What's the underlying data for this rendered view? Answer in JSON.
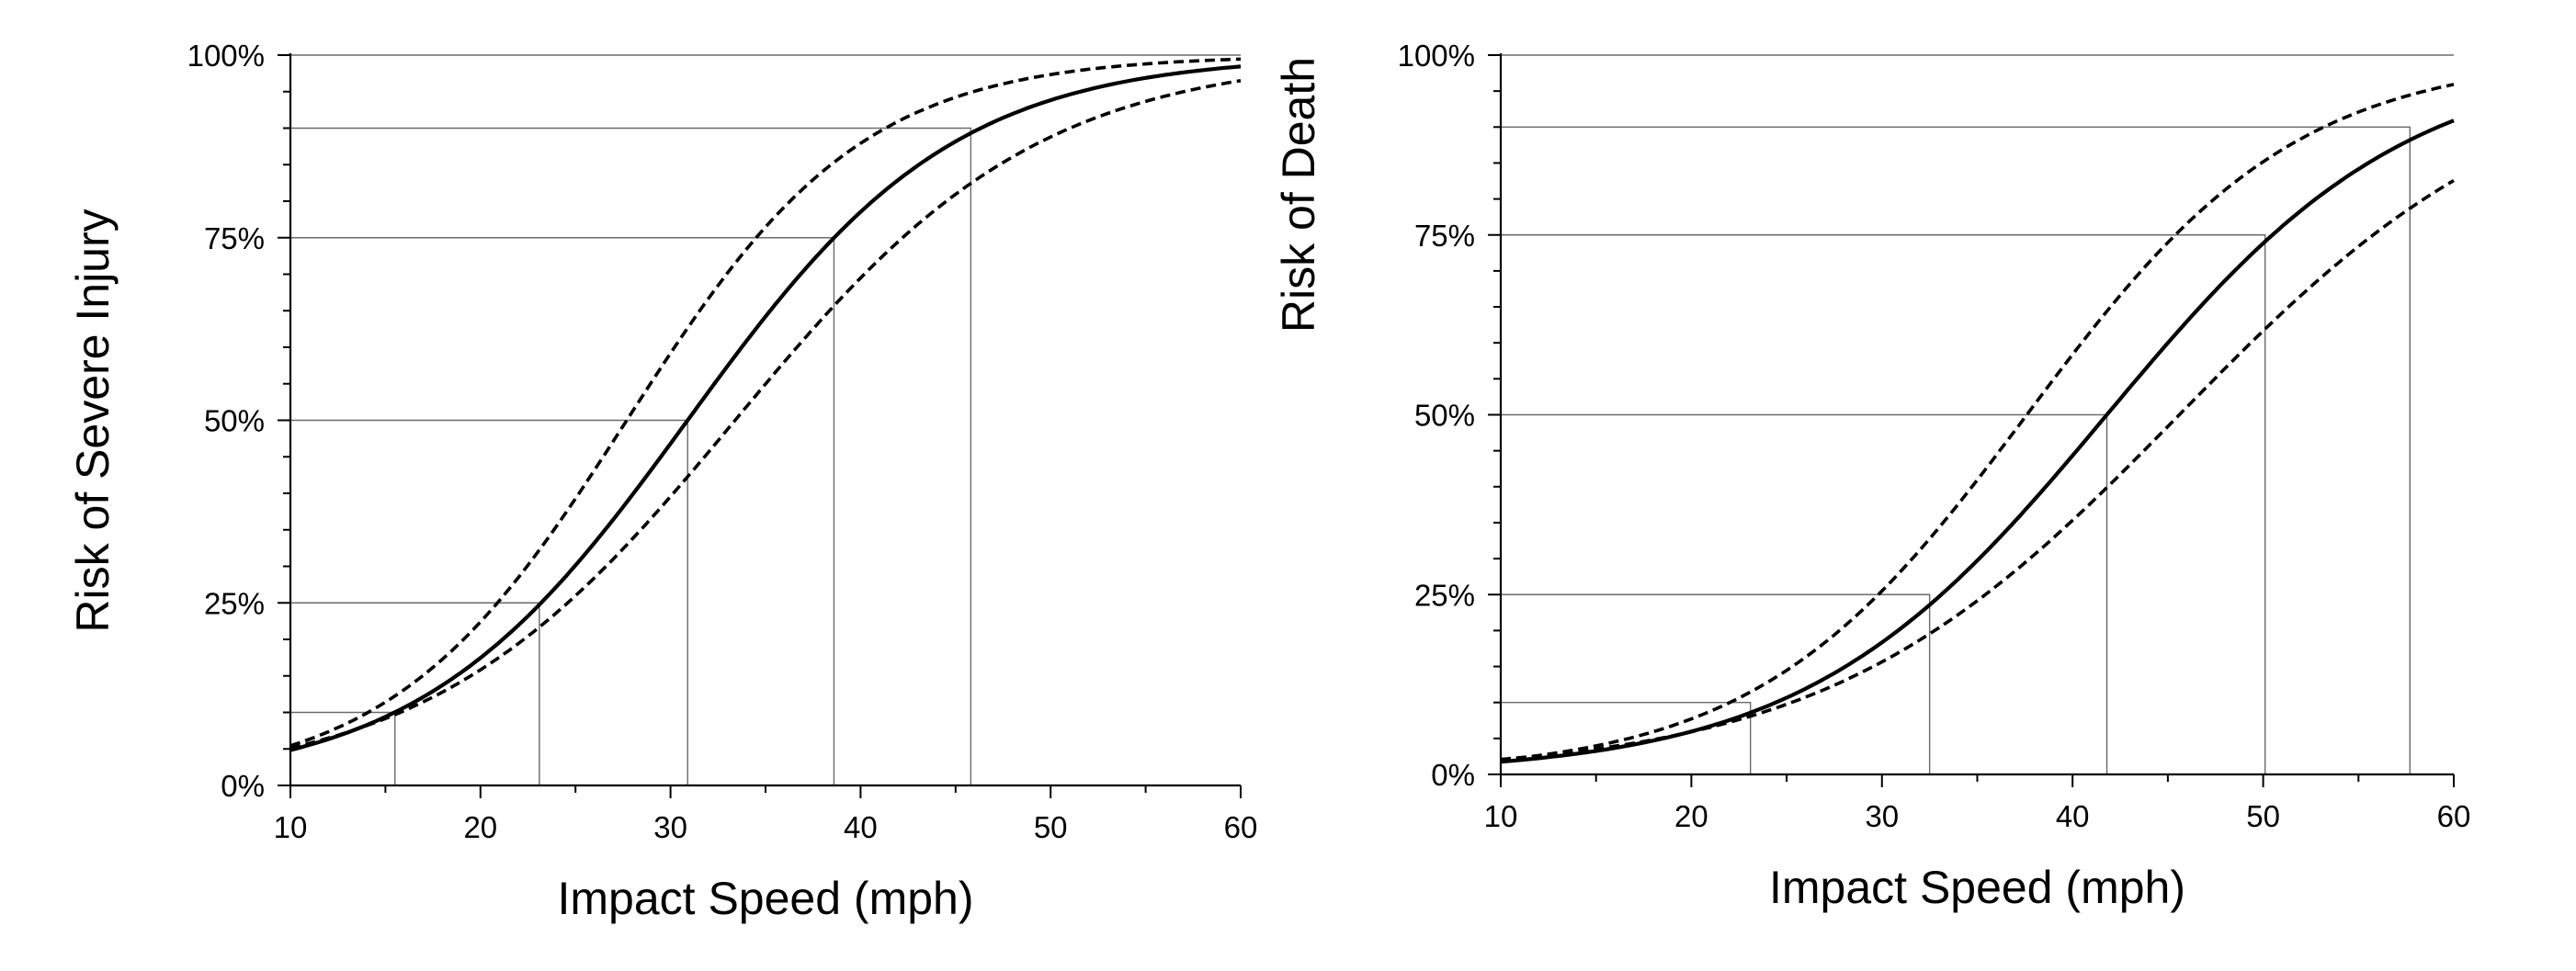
{
  "chart_data": [
    {
      "type": "line",
      "xlabel": "Impact Speed (mph)",
      "ylabel": "Risk of Severe Injury",
      "xlim": [
        10,
        60
      ],
      "ylim": [
        0,
        100
      ],
      "x_ticks": [
        10,
        20,
        30,
        40,
        50,
        60
      ],
      "x_tick_labels": [
        "10",
        "20",
        "30",
        "40",
        "50",
        "60"
      ],
      "y_ticks": [
        0,
        25,
        50,
        75,
        100
      ],
      "y_tick_labels": [
        "0%",
        "25%",
        "50%",
        "75%",
        "100%"
      ],
      "y_minor_step": 5,
      "x_minor_step": 5,
      "grid": false,
      "legend": "none",
      "series": [
        {
          "line_style": "solid",
          "curve": {
            "midpoint": 30.9,
            "slope": 0.1425
          }
        },
        {
          "line_style": "dashed",
          "curve": {
            "midpoint": 27.7,
            "slope": 0.1614
          }
        },
        {
          "line_style": "dashed",
          "curve": {
            "midpoint": 33.4,
            "slope": 0.1247
          }
        }
      ],
      "reference_points": [
        {
          "x": 15.5,
          "y": 10
        },
        {
          "x": 23.1,
          "y": 25
        },
        {
          "x": 30.9,
          "y": 50
        },
        {
          "x": 38.6,
          "y": 75
        },
        {
          "x": 45.8,
          "y": 90
        }
      ]
    },
    {
      "type": "line",
      "xlabel": "Impact Speed (mph)",
      "ylabel": "Risk of Death",
      "xlim": [
        10,
        60
      ],
      "ylim": [
        0,
        100
      ],
      "x_ticks": [
        10,
        20,
        30,
        40,
        50,
        60
      ],
      "x_tick_labels": [
        "10",
        "20",
        "30",
        "40",
        "50",
        "60"
      ],
      "y_ticks": [
        0,
        25,
        50,
        75,
        100
      ],
      "y_tick_labels": [
        "0%",
        "25%",
        "50%",
        "75%",
        "100%"
      ],
      "y_minor_step": 5,
      "x_minor_step": 5,
      "grid": false,
      "legend": "none",
      "series": [
        {
          "line_style": "solid",
          "curve": {
            "midpoint": 41.8,
            "slope": 0.1265
          }
        },
        {
          "line_style": "dashed",
          "curve": {
            "midpoint": 37.6,
            "slope": 0.141
          }
        },
        {
          "line_style": "dashed",
          "curve": {
            "midpoint": 45.6,
            "slope": 0.108
          }
        }
      ],
      "reference_points": [
        {
          "x": 23.1,
          "y": 10
        },
        {
          "x": 32.5,
          "y": 25
        },
        {
          "x": 41.8,
          "y": 50
        },
        {
          "x": 50.1,
          "y": 75
        },
        {
          "x": 57.7,
          "y": 90
        }
      ]
    }
  ]
}
